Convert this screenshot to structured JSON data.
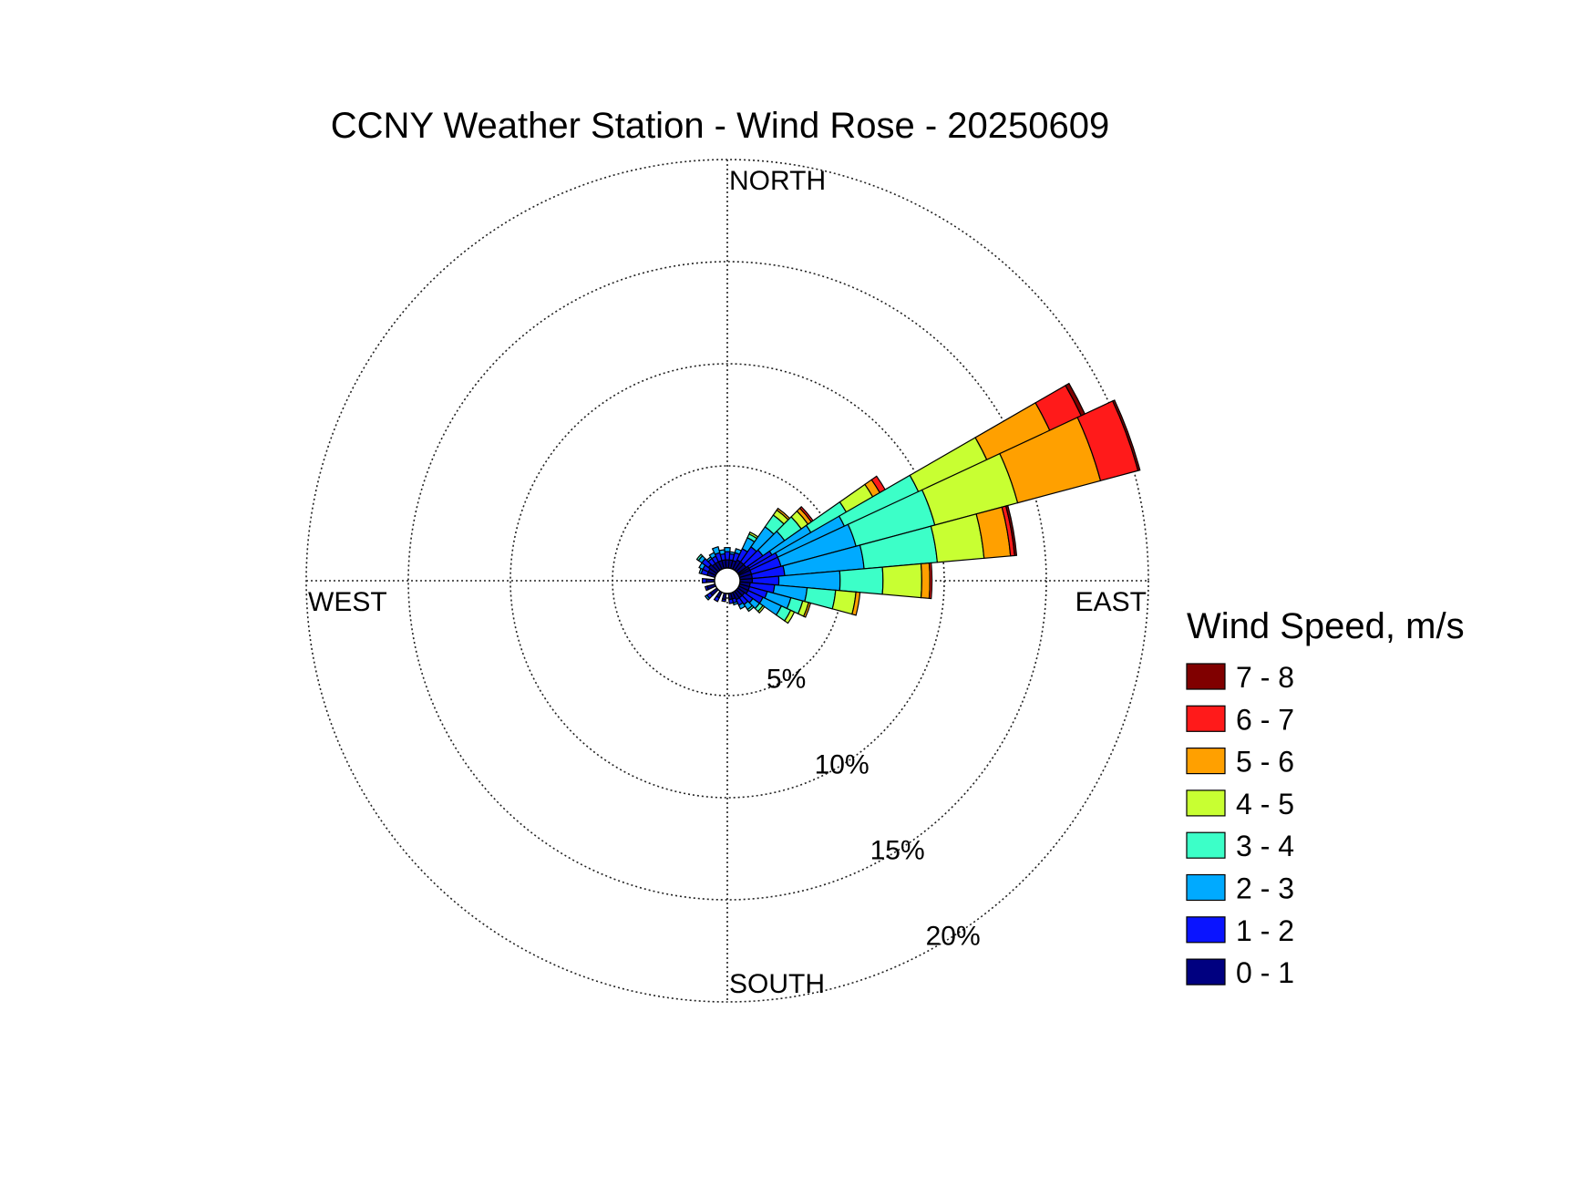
{
  "chart_data": {
    "type": "windrose",
    "title": "CCNY Weather Station - Wind Rose - 20250609",
    "direction_labels": {
      "north": "NORTH",
      "east": "EAST",
      "south": "SOUTH",
      "west": "WEST"
    },
    "radial_axis": {
      "unit": "%",
      "max": 20,
      "ticks": [
        5,
        10,
        15,
        20
      ],
      "tick_labels": [
        "5%",
        "10%",
        "15%",
        "20%"
      ]
    },
    "grid": true,
    "legend": {
      "title": "Wind Speed, m/s",
      "placement": "right",
      "bins": [
        {
          "label": "7 - 8",
          "color": "#800000"
        },
        {
          "label": "6 - 7",
          "color": "#ff1a1a"
        },
        {
          "label": "5 - 6",
          "color": "#ffa000"
        },
        {
          "label": "4 - 5",
          "color": "#c8ff32"
        },
        {
          "label": "3 - 4",
          "color": "#3cffc8"
        },
        {
          "label": "2 - 3",
          "color": "#00aaff"
        },
        {
          "label": "1 - 2",
          "color": "#0a14ff"
        },
        {
          "label": "0 - 1",
          "color": "#000080"
        }
      ]
    },
    "sector_width_deg": 10,
    "speed_bins": [
      "0 - 1",
      "1 - 2",
      "2 - 3",
      "3 - 4",
      "4 - 5",
      "5 - 6",
      "6 - 7",
      "7 - 8"
    ],
    "sectors": [
      {
        "direction": 10,
        "frequencies": [
          0.4,
          0.3,
          0.1,
          0.0,
          0.0,
          0.0,
          0.0,
          0.0
        ]
      },
      {
        "direction": 20,
        "frequencies": [
          0.4,
          0.4,
          0.2,
          0.0,
          0.0,
          0.0,
          0.0,
          0.0
        ]
      },
      {
        "direction": 30,
        "frequencies": [
          0.5,
          0.6,
          0.6,
          0.2,
          0.1,
          0.0,
          0.0,
          0.0
        ]
      },
      {
        "direction": 40,
        "frequencies": [
          0.5,
          0.9,
          1.2,
          0.7,
          0.3,
          0.1,
          0.0,
          0.0
        ]
      },
      {
        "direction": 50,
        "frequencies": [
          0.5,
          1.0,
          1.3,
          1.0,
          0.4,
          0.2,
          0.1,
          0.0
        ]
      },
      {
        "direction": 60,
        "frequencies": [
          0.6,
          1.3,
          2.2,
          2.0,
          1.5,
          0.4,
          0.3,
          0.0
        ]
      },
      {
        "direction": 65,
        "frequencies": [
          0.6,
          1.5,
          3.6,
          4.0,
          3.7,
          3.4,
          1.7,
          0.2
        ]
      },
      {
        "direction": 70,
        "frequencies": [
          0.6,
          1.5,
          3.8,
          4.0,
          4.2,
          4.2,
          1.9,
          0.1
        ]
      },
      {
        "direction": 80,
        "frequencies": [
          0.6,
          1.6,
          3.9,
          3.6,
          2.3,
          1.3,
          0.2,
          0.1
        ]
      },
      {
        "direction": 90,
        "frequencies": [
          0.6,
          1.3,
          3.0,
          2.1,
          1.9,
          0.4,
          0.1,
          0.0
        ]
      },
      {
        "direction": 100,
        "frequencies": [
          0.5,
          1.2,
          1.6,
          1.4,
          1.0,
          0.2,
          0.0,
          0.0
        ]
      },
      {
        "direction": 110,
        "frequencies": [
          0.5,
          0.9,
          1.2,
          0.6,
          0.3,
          0.1,
          0.0,
          0.0
        ]
      },
      {
        "direction": 120,
        "frequencies": [
          0.5,
          0.8,
          1.0,
          0.5,
          0.2,
          0.0,
          0.0,
          0.0
        ]
      },
      {
        "direction": 130,
        "frequencies": [
          0.4,
          0.5,
          0.4,
          0.2,
          0.1,
          0.0,
          0.0,
          0.0
        ]
      },
      {
        "direction": 140,
        "frequencies": [
          0.4,
          0.4,
          0.3,
          0.1,
          0.0,
          0.0,
          0.0,
          0.0
        ]
      },
      {
        "direction": 150,
        "frequencies": [
          0.4,
          0.3,
          0.2,
          0.0,
          0.0,
          0.0,
          0.0,
          0.0
        ]
      },
      {
        "direction": 160,
        "frequencies": [
          0.3,
          0.2,
          0.1,
          0.0,
          0.0,
          0.0,
          0.0,
          0.0
        ]
      },
      {
        "direction": 170,
        "frequencies": [
          0.3,
          0.2,
          0.0,
          0.0,
          0.0,
          0.0,
          0.0,
          0.0
        ]
      },
      {
        "direction": 190,
        "frequencies": [
          0.3,
          0.1,
          0.0,
          0.0,
          0.0,
          0.0,
          0.0,
          0.0
        ]
      },
      {
        "direction": 210,
        "frequencies": [
          0.3,
          0.2,
          0.0,
          0.0,
          0.0,
          0.0,
          0.0,
          0.0
        ]
      },
      {
        "direction": 230,
        "frequencies": [
          0.4,
          0.2,
          0.1,
          0.0,
          0.0,
          0.0,
          0.0,
          0.0
        ]
      },
      {
        "direction": 250,
        "frequencies": [
          0.4,
          0.1,
          0.0,
          0.0,
          0.0,
          0.0,
          0.0,
          0.0
        ]
      },
      {
        "direction": 270,
        "frequencies": [
          0.4,
          0.2,
          0.0,
          0.0,
          0.0,
          0.0,
          0.0,
          0.0
        ]
      },
      {
        "direction": 290,
        "frequencies": [
          0.4,
          0.3,
          0.1,
          0.0,
          0.0,
          0.0,
          0.0,
          0.0
        ]
      },
      {
        "direction": 300,
        "frequencies": [
          0.4,
          0.3,
          0.2,
          0.0,
          0.0,
          0.0,
          0.0,
          0.0
        ]
      },
      {
        "direction": 310,
        "frequencies": [
          0.5,
          0.4,
          0.2,
          0.1,
          0.0,
          0.0,
          0.0,
          0.0
        ]
      },
      {
        "direction": 320,
        "frequencies": [
          0.4,
          0.3,
          0.1,
          0.0,
          0.0,
          0.0,
          0.0,
          0.0
        ]
      },
      {
        "direction": 330,
        "frequencies": [
          0.4,
          0.3,
          0.2,
          0.0,
          0.0,
          0.0,
          0.0,
          0.0
        ]
      },
      {
        "direction": 340,
        "frequencies": [
          0.4,
          0.4,
          0.3,
          0.0,
          0.0,
          0.0,
          0.0,
          0.0
        ]
      },
      {
        "direction": 350,
        "frequencies": [
          0.4,
          0.3,
          0.2,
          0.0,
          0.0,
          0.0,
          0.0,
          0.0
        ]
      },
      {
        "direction": 0,
        "frequencies": [
          0.4,
          0.4,
          0.2,
          0.0,
          0.0,
          0.0,
          0.0,
          0.0
        ]
      }
    ]
  }
}
